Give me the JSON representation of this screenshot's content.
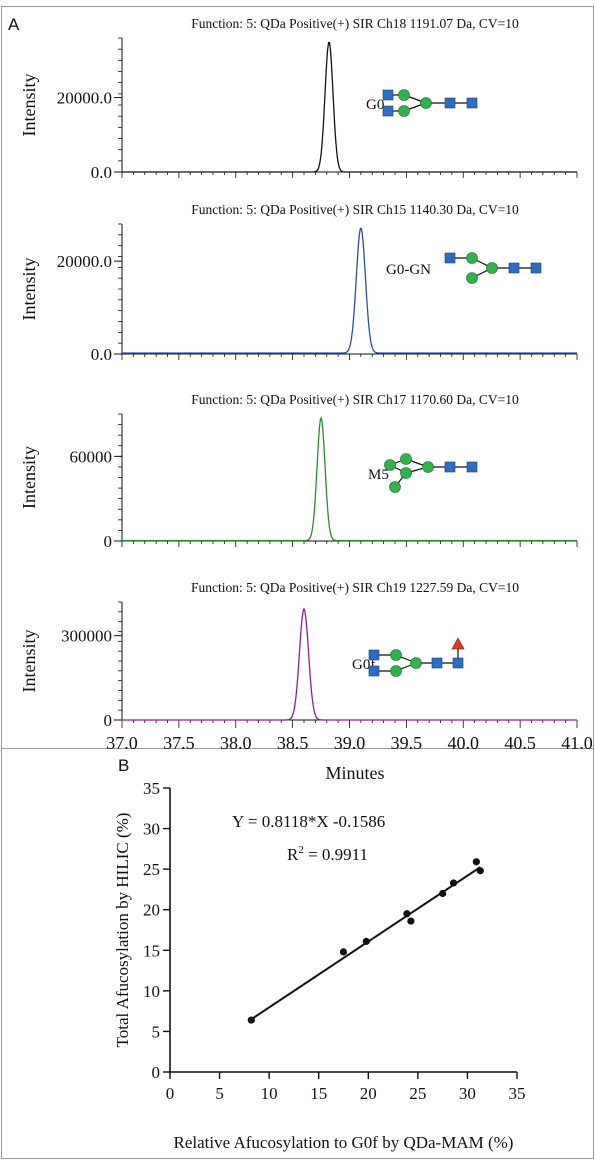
{
  "panel_a_label": "A",
  "panel_b_label": "B",
  "chart_data": [
    {
      "type": "line",
      "title": "Function: 5: QDa Positive(+) SIR Ch18 1191.07 Da, CV=10",
      "ylabel": "Intensity",
      "ytick_labels": [
        "0.0",
        "20000.0"
      ],
      "yticks": [
        0,
        20000
      ],
      "ylim": [
        0,
        36000
      ],
      "xlim": [
        37.0,
        41.0
      ],
      "color": "#111111",
      "peak_label": "G0",
      "series": [
        {
          "peak_center": 38.82,
          "peak_height": 35000,
          "peak_width": 0.035,
          "baseline": 0
        }
      ]
    },
    {
      "type": "line",
      "title": "Function: 5: QDa Positive(+) SIR Ch15 1140.30 Da, CV=10",
      "ylabel": "Intensity",
      "ytick_labels": [
        "0.0",
        "20000.0"
      ],
      "yticks": [
        0,
        20000
      ],
      "ylim": [
        0,
        28000
      ],
      "xlim": [
        37.0,
        41.0
      ],
      "color": "#2b4fa8",
      "peak_label": "G0-GN",
      "series": [
        {
          "peak_center": 39.1,
          "peak_height": 27000,
          "peak_width": 0.04,
          "baseline": 200
        }
      ]
    },
    {
      "type": "line",
      "title": "Function: 5: QDa Positive(+) SIR Ch17 1170.60 Da, CV=10",
      "ylabel": "Intensity",
      "ytick_labels": [
        "0",
        "60000"
      ],
      "yticks": [
        0,
        60000
      ],
      "ylim": [
        0,
        90000
      ],
      "xlim": [
        37.0,
        41.0
      ],
      "color": "#2e8a2e",
      "peak_label": "M5",
      "series": [
        {
          "peak_center": 38.75,
          "peak_height": 87000,
          "peak_width": 0.035,
          "baseline": 300
        }
      ]
    },
    {
      "type": "line",
      "title": "Function: 5: QDa Positive(+) SIR Ch19 1227.59 Da, CV=10",
      "ylabel": "Intensity",
      "ytick_labels": [
        "0",
        "300000"
      ],
      "yticks": [
        0,
        300000
      ],
      "ylim": [
        0,
        420000
      ],
      "xlim": [
        37.0,
        41.0
      ],
      "color": "#8a1f9a",
      "peak_label": "G0f",
      "xlabel": "Minutes",
      "xtick_labels": [
        "37.0",
        "37.5",
        "38.0",
        "38.5",
        "39.0",
        "39.5",
        "40.0",
        "40.5",
        "41.0"
      ],
      "xticks": [
        37.0,
        37.5,
        38.0,
        38.5,
        39.0,
        39.5,
        40.0,
        40.5,
        41.0
      ],
      "series": [
        {
          "peak_center": 38.6,
          "peak_height": 395000,
          "peak_width": 0.04,
          "baseline": 0
        }
      ]
    },
    {
      "type": "scatter",
      "xlabel": "Relative Afucosylation to G0f by QDa-MAM (%)",
      "ylabel": "Total Afucosylation by HILIC (%)",
      "xlim": [
        0,
        35
      ],
      "ylim": [
        0,
        35
      ],
      "xticks": [
        0,
        5,
        10,
        15,
        20,
        25,
        30,
        35
      ],
      "yticks": [
        0,
        5,
        10,
        15,
        20,
        25,
        30,
        35
      ],
      "xtick_labels": [
        "0",
        "5",
        "10",
        "15",
        "20",
        "25",
        "30",
        "35"
      ],
      "ytick_labels": [
        "0",
        "5",
        "10",
        "15",
        "20",
        "25",
        "30",
        "35"
      ],
      "equation_text": "Y = 0.8118*X -0.1586",
      "r2_prefix": "R",
      "r2_sup": "2",
      "r2_value": " = 0.9911",
      "fit": {
        "slope": 0.8118,
        "intercept": -0.1586,
        "x_range": [
          8.2,
          31.3
        ]
      },
      "points": [
        [
          8.2,
          6.4
        ],
        [
          17.5,
          14.8
        ],
        [
          19.8,
          16.1
        ],
        [
          23.9,
          19.5
        ],
        [
          24.3,
          18.6
        ],
        [
          27.5,
          22.0
        ],
        [
          28.6,
          23.3
        ],
        [
          30.9,
          25.9
        ],
        [
          31.3,
          24.8
        ]
      ]
    }
  ]
}
